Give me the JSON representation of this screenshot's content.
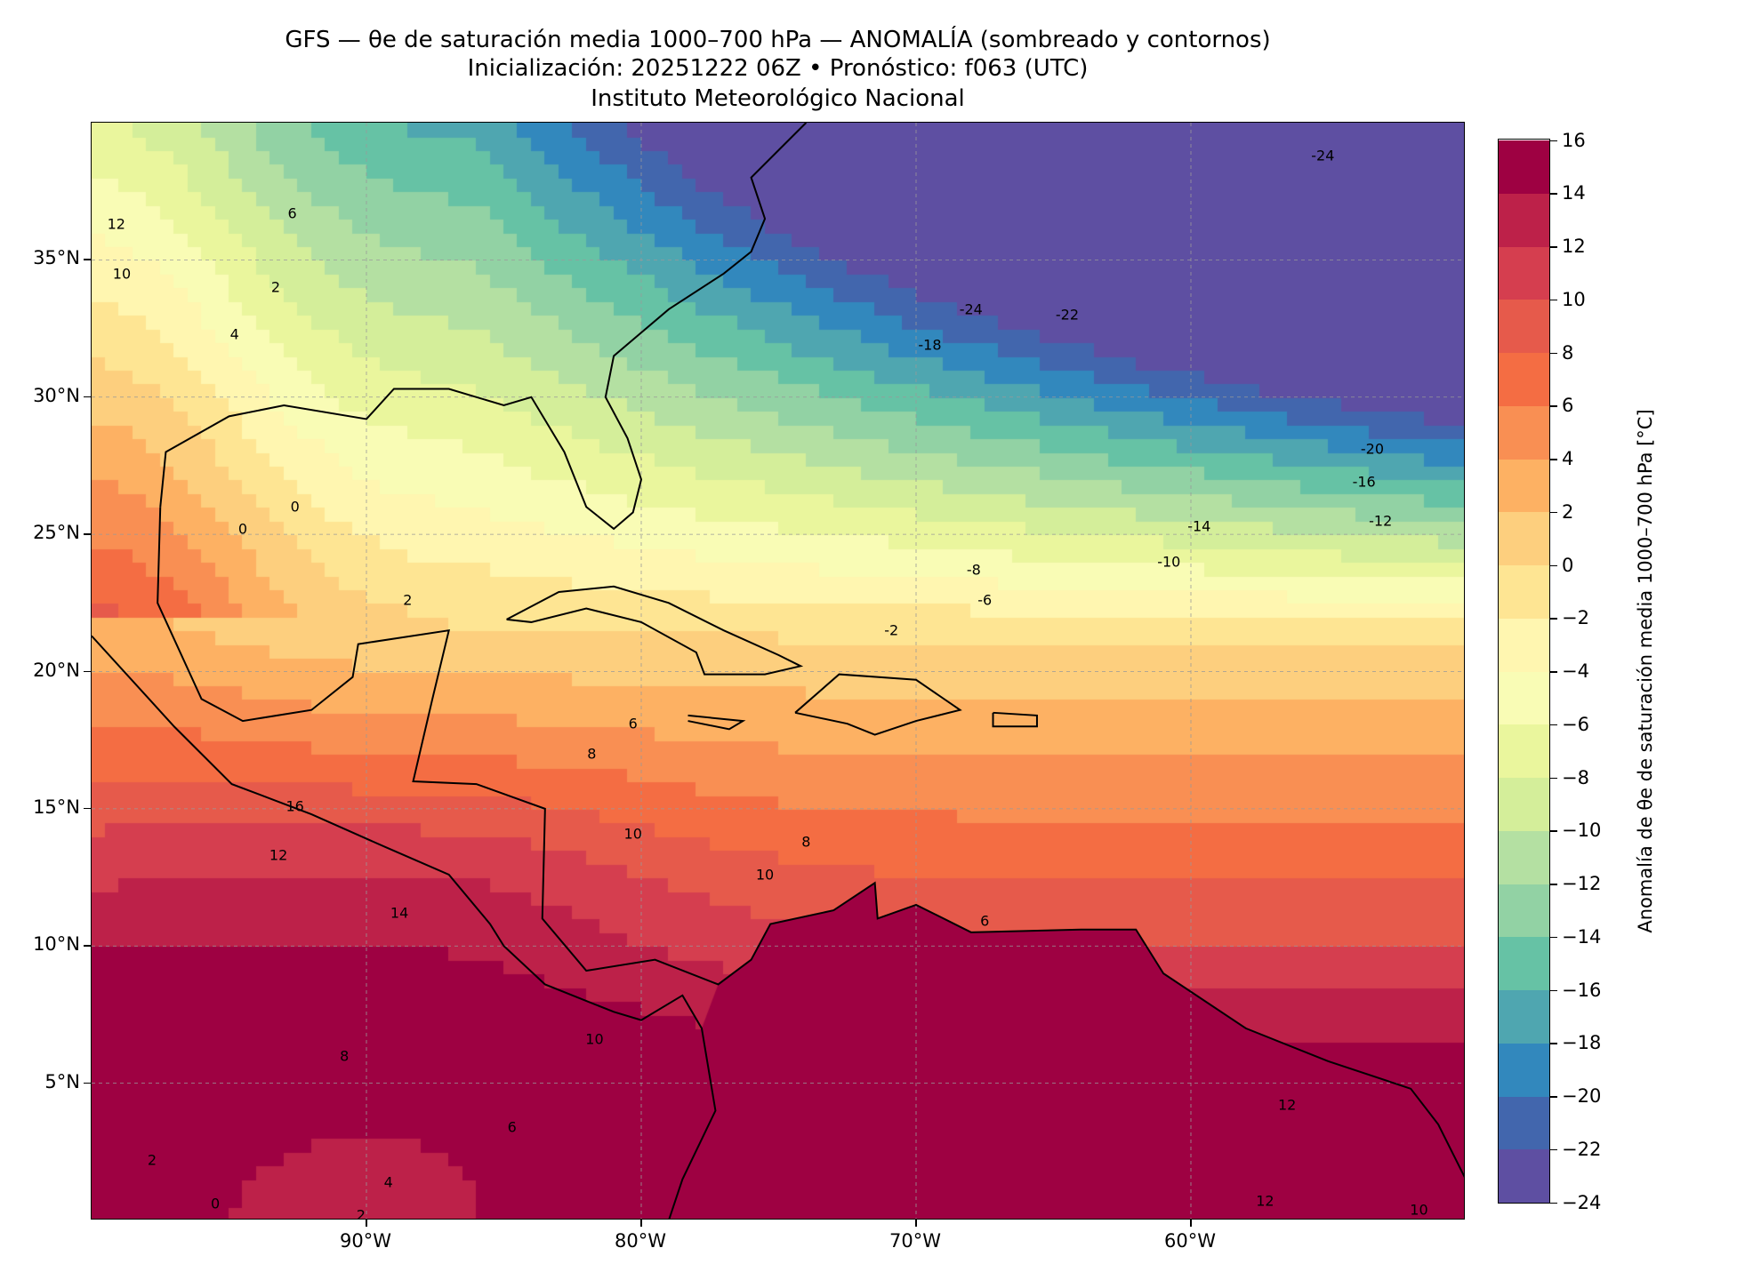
{
  "header": {
    "title_line1": "GFS — θe de saturación media 1000–700 hPa — ANOMALÍA (sombreado y contornos)",
    "title_line2": "Inicialización: 20251222 06Z   •   Pronóstico: f063 (UTC)",
    "title_line3": "Instituto Meteorológico Nacional"
  },
  "chart_data": {
    "type": "heatmap",
    "title": "GFS — θe de saturación media 1000–700 hPa — ANOMALÍA (sombreado y contornos)",
    "lon_range": [
      -100,
      -50
    ],
    "lat_range": [
      0,
      40
    ],
    "lon_ticks": [
      {
        "value": -90,
        "label": "90°W"
      },
      {
        "value": -80,
        "label": "80°W"
      },
      {
        "value": -70,
        "label": "70°W"
      },
      {
        "value": -60,
        "label": "60°W"
      }
    ],
    "lat_ticks": [
      {
        "value": 35,
        "label": "35°N"
      },
      {
        "value": 30,
        "label": "30°N"
      },
      {
        "value": 25,
        "label": "25°N"
      },
      {
        "value": 20,
        "label": "20°N"
      },
      {
        "value": 15,
        "label": "15°N"
      },
      {
        "value": 10,
        "label": "10°N"
      },
      {
        "value": 5,
        "label": "5°N"
      }
    ],
    "grid": true,
    "colorbar": {
      "label": "Anomalía de θe de saturación media 1000–700 hPa [°C]",
      "levels": [
        -24,
        -22,
        -20,
        -18,
        -16,
        -14,
        -12,
        -10,
        -8,
        -6,
        -4,
        -2,
        0,
        2,
        4,
        6,
        8,
        10,
        12,
        14,
        16
      ],
      "tick_labels": [
        "−24",
        "−22",
        "−20",
        "−18",
        "−16",
        "−14",
        "−12",
        "−10",
        "−8",
        "−6",
        "−4",
        "−2",
        "0",
        "2",
        "4",
        "6",
        "8",
        "10",
        "12",
        "14",
        "16"
      ],
      "colors": [
        "#5e4fa2",
        "#4266ad",
        "#3288bd",
        "#4fa6b0",
        "#66c2a5",
        "#92d2a4",
        "#b4e0a2",
        "#d4ee9a",
        "#eaf69d",
        "#f9fcb5",
        "#fff6b0",
        "#fee593",
        "#fdcf7e",
        "#fdb163",
        "#f98f53",
        "#f46d43",
        "#e65a4b",
        "#d53e4f",
        "#bd2149",
        "#9e0142"
      ],
      "range": [
        -24,
        16
      ]
    },
    "contour_labels": [
      {
        "text": "-24",
        "lon": -68,
        "lat": 33.2
      },
      {
        "text": "-22",
        "lon": -64.5,
        "lat": 33
      },
      {
        "text": "-18",
        "lon": -69.5,
        "lat": 31.9
      },
      {
        "text": "-24",
        "lon": -55.2,
        "lat": 38.8
      },
      {
        "text": "-20",
        "lon": -53.4,
        "lat": 28.1
      },
      {
        "text": "-16",
        "lon": -53.7,
        "lat": 26.9
      },
      {
        "text": "-14",
        "lon": -59.7,
        "lat": 25.3
      },
      {
        "text": "-12",
        "lon": -53.1,
        "lat": 25.5
      },
      {
        "text": "-10",
        "lon": -60.8,
        "lat": 24.0
      },
      {
        "text": "-8",
        "lon": -67.9,
        "lat": 23.7
      },
      {
        "text": "-6",
        "lon": -67.5,
        "lat": 22.6
      },
      {
        "text": "-2",
        "lon": -70.9,
        "lat": 21.5
      },
      {
        "text": "0",
        "lon": -92.6,
        "lat": 26.0
      },
      {
        "text": "0",
        "lon": -94.5,
        "lat": 25.2
      },
      {
        "text": "2",
        "lon": -88.5,
        "lat": 22.6
      },
      {
        "text": "6",
        "lon": -80.3,
        "lat": 18.1
      },
      {
        "text": "8",
        "lon": -81.8,
        "lat": 17.0
      },
      {
        "text": "10",
        "lon": -80.3,
        "lat": 14.1
      },
      {
        "text": "8",
        "lon": -74,
        "lat": 13.8
      },
      {
        "text": "10",
        "lon": -75.5,
        "lat": 12.6
      },
      {
        "text": "6",
        "lon": -67.5,
        "lat": 10.9
      },
      {
        "text": "16",
        "lon": -92.6,
        "lat": 15.1
      },
      {
        "text": "12",
        "lon": -93.2,
        "lat": 13.3
      },
      {
        "text": "14",
        "lon": -88.8,
        "lat": 11.2
      },
      {
        "text": "8",
        "lon": -90.8,
        "lat": 6.0
      },
      {
        "text": "10",
        "lon": -81.7,
        "lat": 6.6
      },
      {
        "text": "6",
        "lon": -84.7,
        "lat": 3.4
      },
      {
        "text": "2",
        "lon": -97.8,
        "lat": 2.2
      },
      {
        "text": "0",
        "lon": -95.5,
        "lat": 0.6
      },
      {
        "text": "4",
        "lon": -89.2,
        "lat": 1.4
      },
      {
        "text": "2",
        "lon": -90.2,
        "lat": 0.2
      },
      {
        "text": "12",
        "lon": -56.5,
        "lat": 4.2
      },
      {
        "text": "12",
        "lon": -57.3,
        "lat": 0.7
      },
      {
        "text": "10",
        "lon": -51.7,
        "lat": 0.4
      },
      {
        "text": "4",
        "lon": -94.8,
        "lat": 32.3
      },
      {
        "text": "2",
        "lon": -93.3,
        "lat": 34.0
      },
      {
        "text": "6",
        "lon": -92.7,
        "lat": 36.7
      },
      {
        "text": "12",
        "lon": -99.1,
        "lat": 36.3
      },
      {
        "text": "10",
        "lon": -98.9,
        "lat": 34.5
      }
    ]
  }
}
